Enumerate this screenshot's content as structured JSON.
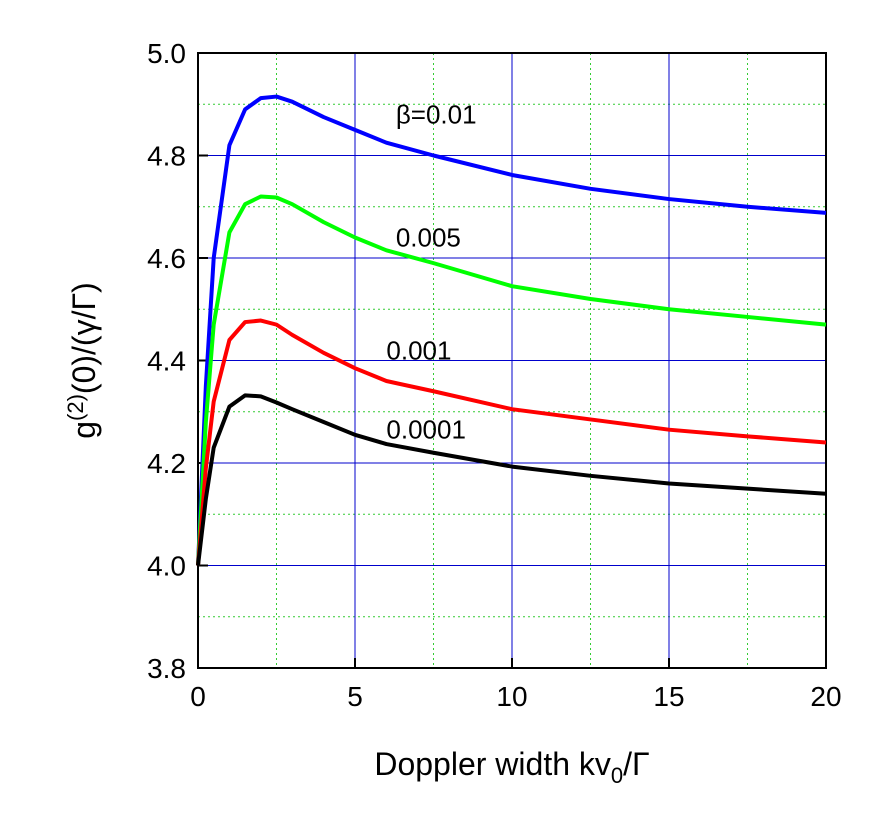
{
  "chart_data": {
    "type": "line",
    "xlabel": [
      "Doppler width kv",
      "0",
      "/Γ"
    ],
    "ylabel": [
      "g",
      "(2)",
      "(0)/(γ/Γ)"
    ],
    "x": [
      0,
      0.25,
      0.5,
      1,
      1.5,
      2,
      2.5,
      3,
      4,
      5,
      6,
      7.5,
      10,
      12.5,
      15,
      17.5,
      20
    ],
    "series": [
      {
        "name": "β=0.01",
        "color": "#0000ff",
        "values": [
          4.0,
          4.35,
          4.6,
          4.82,
          4.89,
          4.912,
          4.915,
          4.905,
          4.875,
          4.85,
          4.825,
          4.8,
          4.762,
          4.735,
          4.715,
          4.7,
          4.688
        ]
      },
      {
        "name": "0.005",
        "color": "#00ff00",
        "values": [
          4.0,
          4.28,
          4.47,
          4.65,
          4.705,
          4.72,
          4.718,
          4.705,
          4.67,
          4.64,
          4.615,
          4.59,
          4.545,
          4.52,
          4.5,
          4.485,
          4.47
        ]
      },
      {
        "name": "0.001",
        "color": "#ff0000",
        "values": [
          4.0,
          4.19,
          4.32,
          4.44,
          4.475,
          4.478,
          4.47,
          4.45,
          4.415,
          4.385,
          4.36,
          4.34,
          4.305,
          4.285,
          4.265,
          4.252,
          4.24
        ]
      },
      {
        "name": "0.0001",
        "color": "#000000",
        "values": [
          4.0,
          4.13,
          4.23,
          4.31,
          4.332,
          4.33,
          4.318,
          4.305,
          4.28,
          4.255,
          4.237,
          4.22,
          4.193,
          4.175,
          4.16,
          4.15,
          4.14
        ]
      }
    ],
    "xlim": [
      0,
      20
    ],
    "xticks": [
      0,
      5,
      10,
      15,
      20
    ],
    "ylim": [
      3.8,
      5.0
    ],
    "yticks": [
      3.8,
      {
        "value": 4.0,
        "label": "4.0"
      },
      4.2,
      4.4,
      4.6,
      4.8,
      {
        "value": 5.0,
        "label": "5.0"
      }
    ],
    "grid": true,
    "grid_color": "#0000cc",
    "minor_grid_color": "#33cc33"
  }
}
